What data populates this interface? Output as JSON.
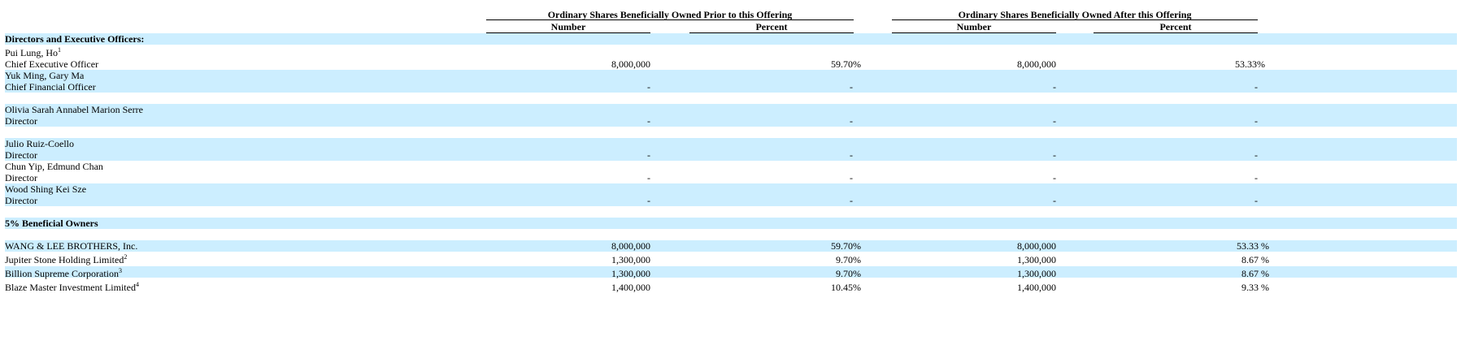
{
  "header": {
    "group_before": "Ordinary Shares Beneficially Owned Prior to this Offering",
    "group_after": "Ordinary Shares Beneficially Owned After this Offering",
    "number_label": "Number",
    "percent_label": "Percent"
  },
  "sections": {
    "directors_title": "Directors and Executive Officers:",
    "owners_title": "5% Beneficial Owners"
  },
  "directors": [
    {
      "name": "Pui Lung, Ho",
      "sup": "1",
      "title": "Chief Executive Officer",
      "num_before": "8,000,000",
      "pct_before": "59.70%",
      "num_after": "8,000,000",
      "pct_after": "53.33%"
    },
    {
      "name": "Yuk Ming, Gary Ma",
      "sup": "",
      "title": "Chief Financial Officer",
      "num_before": "-",
      "pct_before": "-",
      "num_after": "-",
      "pct_after": "-"
    },
    {
      "name": "Olivia Sarah Annabel Marion Serre",
      "sup": "",
      "title": "Director",
      "num_before": "-",
      "pct_before": "-",
      "num_after": "-",
      "pct_after": "-"
    },
    {
      "name": "Julio Ruiz-Coello",
      "sup": "",
      "title": "Director",
      "num_before": "-",
      "pct_before": "-",
      "num_after": "-",
      "pct_after": "-"
    },
    {
      "name": "Chun Yip, Edmund Chan",
      "sup": "",
      "title": "Director",
      "num_before": "-",
      "pct_before": "-",
      "num_after": "-",
      "pct_after": "-"
    },
    {
      "name": "Wood Shing Kei Sze",
      "sup": "",
      "title": "Director",
      "num_before": "-",
      "pct_before": "-",
      "num_after": "-",
      "pct_after": "-"
    }
  ],
  "owners": [
    {
      "name": "WANG & LEE BROTHERS, Inc.",
      "sup": "",
      "num_before": "8,000,000",
      "pct_before": "59.70%",
      "num_after": "8,000,000",
      "pct_after": "53.33 %"
    },
    {
      "name": "Jupiter Stone Holding Limited",
      "sup": "2",
      "num_before": "1,300,000",
      "pct_before": "9.70%",
      "num_after": "1,300,000",
      "pct_after": "8.67 %"
    },
    {
      "name": "Billion Supreme Corporation",
      "sup": "3",
      "num_before": "1,300,000",
      "pct_before": "9.70%",
      "num_after": "1,300,000",
      "pct_after": "8.67 %"
    },
    {
      "name": "Blaze Master Investment Limited",
      "sup": "4",
      "num_before": "1,400,000",
      "pct_before": "10.45%",
      "num_after": "1,400,000",
      "pct_after": "9.33 %"
    }
  ]
}
